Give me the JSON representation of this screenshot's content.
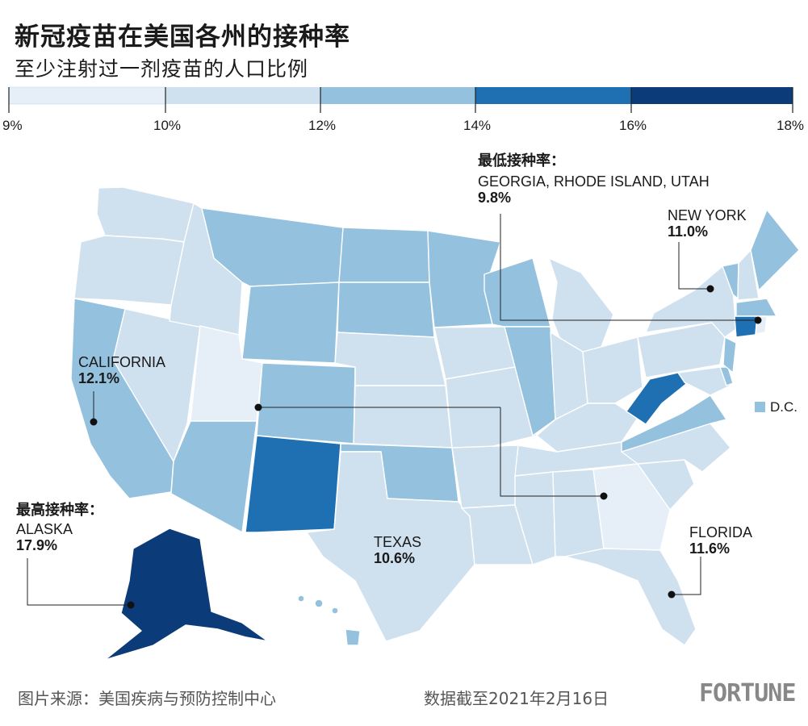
{
  "title": "新冠疫苗在美国各州的接种率",
  "subtitle": "至少注射过一剂疫苗的人口比例",
  "legend": {
    "bins": [
      {
        "from": 9,
        "to": 10,
        "color": "#e6eef8"
      },
      {
        "from": 10,
        "to": 12,
        "color": "#cfe0ef"
      },
      {
        "from": 12,
        "to": 14,
        "color": "#94c1de"
      },
      {
        "from": 14,
        "to": 16,
        "color": "#1f6fb3"
      },
      {
        "from": 16,
        "to": 18,
        "color": "#0b3b78"
      }
    ],
    "ticks": [
      "9%",
      "10%",
      "12%",
      "14%",
      "16%",
      "18%"
    ]
  },
  "callouts": {
    "lowest": {
      "heading": "最低接种率：",
      "name": "GEORGIA, RHODE ISLAND, UTAH",
      "value": "9.8%"
    },
    "highest": {
      "heading": "最高接种率：",
      "name": "ALASKA",
      "value": "17.9%"
    },
    "new_york": {
      "name": "NEW YORK",
      "value": "11.0%"
    },
    "california": {
      "name": "CALIFORNIA",
      "value": "12.1%"
    },
    "texas": {
      "name": "TEXAS",
      "value": "10.6%"
    },
    "florida": {
      "name": "FLORIDA",
      "value": "11.6%"
    }
  },
  "dc_label": "D.C.",
  "map_data": {
    "unit": "percent with at least one dose",
    "labeled_values": {
      "Alaska": 17.9,
      "California": 12.1,
      "Texas": 10.6,
      "Florida": 11.6,
      "New York": 11.0,
      "Georgia": 9.8,
      "Rhode Island": 9.8,
      "Utah": 9.8
    },
    "state_bins": {
      "WA": 1,
      "OR": 1,
      "CA": 2,
      "NV": 1,
      "ID": 1,
      "MT": 2,
      "WY": 2,
      "UT": 0,
      "CO": 2,
      "AZ": 2,
      "NM": 3,
      "ND": 2,
      "SD": 2,
      "NE": 1,
      "KS": 1,
      "OK": 2,
      "TX": 1,
      "MN": 2,
      "IA": 1,
      "MO": 1,
      "AR": 1,
      "LA": 1,
      "WI": 2,
      "IL": 2,
      "MI": 1,
      "IN": 1,
      "OH": 1,
      "KY": 1,
      "TN": 1,
      "MS": 1,
      "AL": 1,
      "GA": 0,
      "FL": 1,
      "SC": 1,
      "NC": 1,
      "VA": 2,
      "WV": 3,
      "PA": 1,
      "NY": 1,
      "VT": 2,
      "NH": 1,
      "ME": 2,
      "MA": 2,
      "CT": 3,
      "RI": 0,
      "NJ": 2,
      "DE": 2,
      "MD": 1,
      "DC": 2,
      "AK": 4,
      "HI": 2
    }
  },
  "footer": {
    "source": "图片来源：美国疾病与预防控制中心",
    "date": "数据截至2021年2月16日",
    "brand": "FORTUNE"
  }
}
